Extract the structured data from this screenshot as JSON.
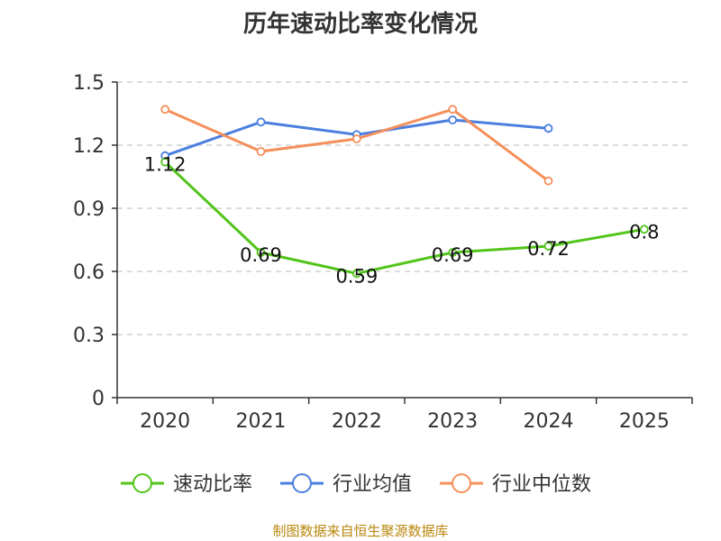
{
  "chart_data": {
    "type": "line",
    "title": "历年速动比率变化情况",
    "categories": [
      "2020",
      "2021",
      "2022",
      "2023",
      "2024",
      "2025"
    ],
    "yticks": [
      "0",
      "0.3",
      "0.6",
      "0.9",
      "1.2",
      "1.5"
    ],
    "ylim": [
      0,
      1.5
    ],
    "grid": true,
    "legend_position": "bottom",
    "series": [
      {
        "name": "速动比率",
        "color": "#52c41a",
        "values": [
          1.12,
          0.69,
          0.59,
          0.69,
          0.72,
          0.8
        ],
        "labels": [
          "1.12",
          "0.69",
          "0.59",
          "0.69",
          "0.72",
          "0.8"
        ]
      },
      {
        "name": "行业均值",
        "color": "#4a7fe0",
        "values": [
          1.15,
          1.31,
          1.25,
          1.32,
          1.28,
          null
        ]
      },
      {
        "name": "行业中位数",
        "color": "#f58f5a",
        "values": [
          1.37,
          1.17,
          1.23,
          1.37,
          1.03,
          null
        ]
      }
    ]
  },
  "footer": "制图数据来自恒生聚源数据库"
}
